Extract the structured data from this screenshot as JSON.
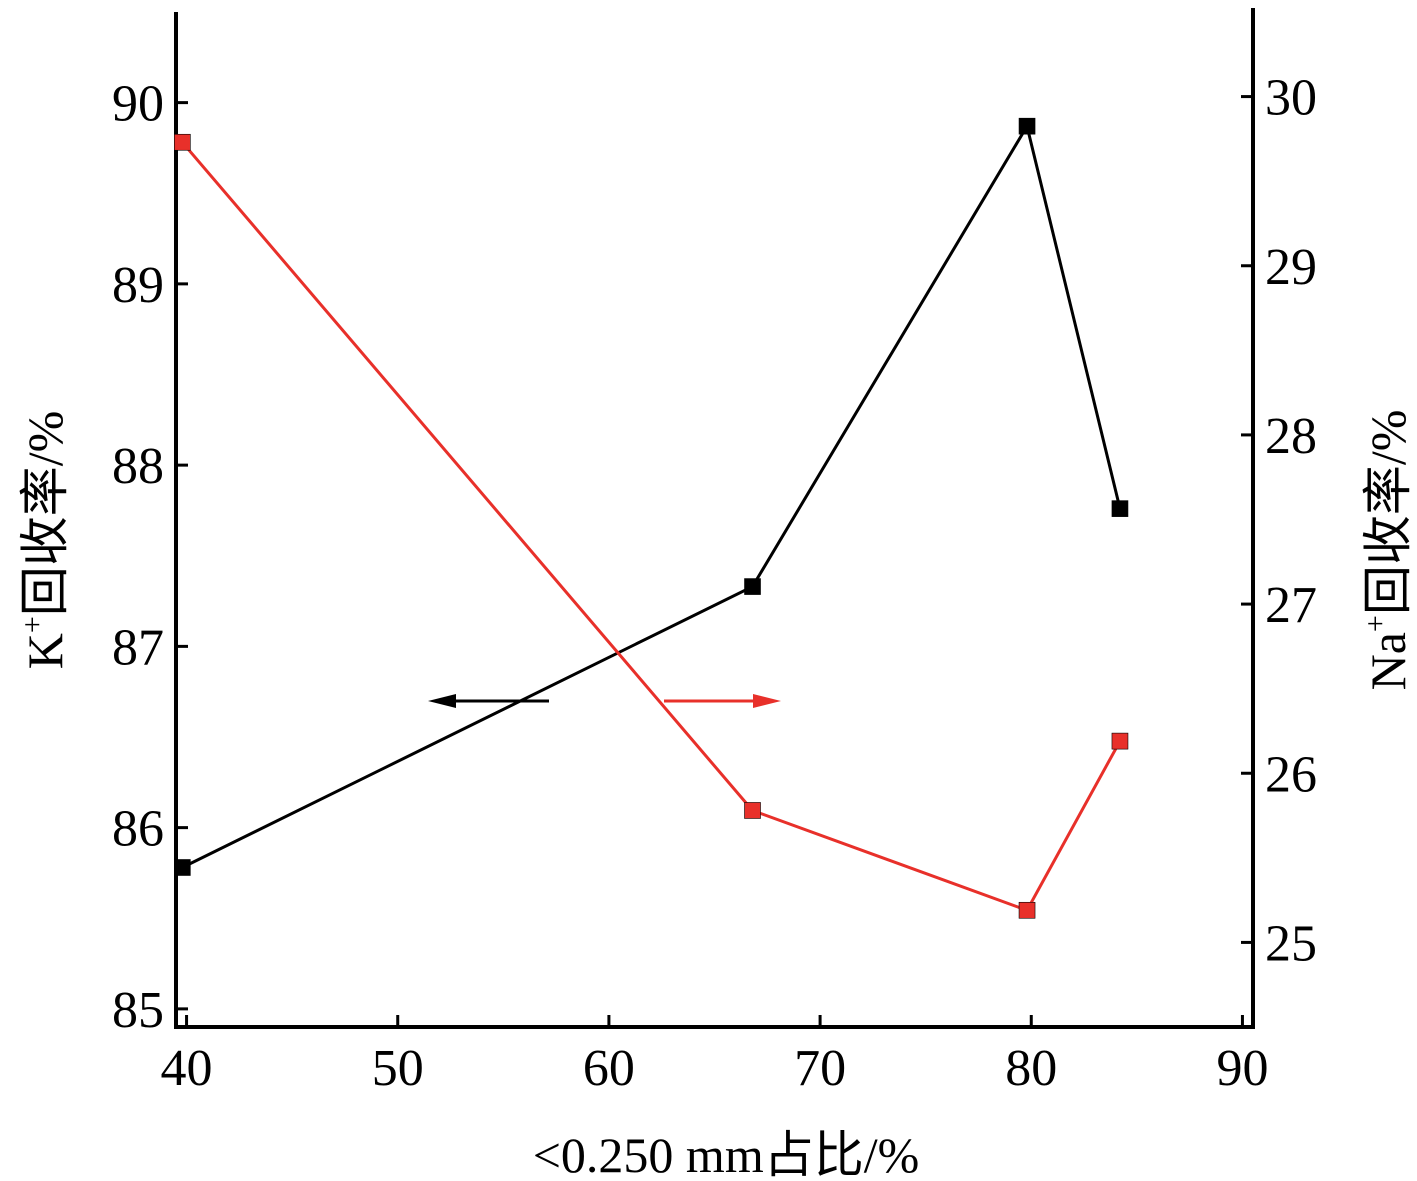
{
  "chart_data": {
    "type": "line",
    "xlabel": "<0.250 mm占比/%",
    "ylabel_left_main": "K",
    "ylabel_left_sup": "+",
    "ylabel_left_rest": "回收率/%",
    "ylabel_right_main": "Na",
    "ylabel_right_sup": "+",
    "ylabel_right_rest": "回收率/%",
    "xlim": [
      39.5,
      90.5
    ],
    "ylim_left": [
      84.9,
      90.5
    ],
    "ylim_right": [
      24.5,
      30.5
    ],
    "x_ticks": [
      40,
      50,
      60,
      70,
      80,
      90
    ],
    "y_left_ticks": [
      85,
      86,
      87,
      88,
      89,
      90
    ],
    "y_right_ticks": [
      25,
      26,
      27,
      28,
      29,
      30
    ],
    "grid": false,
    "series": [
      {
        "axis": "left",
        "color": "#000000",
        "marker": "square",
        "x": [
          39.8,
          66.8,
          79.8,
          84.2
        ],
        "y": [
          85.78,
          87.33,
          89.87,
          87.76
        ]
      },
      {
        "axis": "right",
        "color": "#e8302a",
        "marker": "square",
        "x": [
          39.8,
          66.8,
          79.8,
          84.2
        ],
        "y": [
          29.73,
          25.78,
          25.19,
          26.19
        ]
      }
    ],
    "annotations": [
      {
        "type": "arrow",
        "direction": "left",
        "color": "#000000",
        "meaning": "left-axis series"
      },
      {
        "type": "arrow",
        "direction": "right",
        "color": "#e8302a",
        "meaning": "right-axis series"
      }
    ]
  }
}
